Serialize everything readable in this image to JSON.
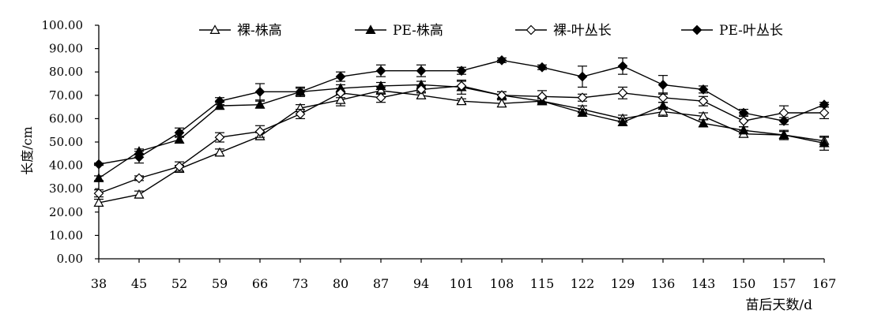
{
  "chart_data": {
    "type": "line",
    "title": "",
    "xlabel": "苗后天数/d",
    "ylabel": "长度/cm",
    "ylim": [
      0,
      100
    ],
    "yticks": [
      "0.00",
      "10.00",
      "20.00",
      "30.00",
      "40.00",
      "50.00",
      "60.00",
      "70.00",
      "80.00",
      "90.00",
      "100.00"
    ],
    "categories": [
      "38",
      "45",
      "52",
      "59",
      "66",
      "73",
      "80",
      "87",
      "94",
      "101",
      "108",
      "115",
      "122",
      "129",
      "136",
      "143",
      "150",
      "157",
      "167"
    ],
    "legend_position": "top",
    "series": [
      {
        "name": "裸-株高",
        "marker": "triangle-open",
        "values": [
          24,
          27.5,
          38.5,
          45.5,
          52.5,
          64.5,
          68,
          72,
          70,
          67.5,
          66.5,
          67.5,
          64,
          60,
          63,
          61,
          53.5,
          53,
          50.5
        ],
        "errors": [
          1.5,
          1.5,
          1.5,
          1.5,
          1.5,
          1.5,
          2.5,
          1.5,
          1.5,
          1.0,
          1.5,
          1.5,
          1.5,
          1.5,
          2.0,
          1.5,
          1.5,
          1.5,
          1.5
        ]
      },
      {
        "name": "PE-株高",
        "marker": "triangle-filled",
        "values": [
          34.5,
          46,
          51,
          65.5,
          66,
          71.5,
          73,
          74,
          74.5,
          73.5,
          70,
          67.5,
          62.5,
          58.5,
          65.5,
          58,
          55,
          53,
          49.5
        ],
        "errors": [
          1.0,
          1.0,
          1.5,
          1.5,
          1.5,
          1.5,
          1.5,
          1.5,
          1.5,
          3.0,
          1.5,
          1.0,
          1.5,
          1.5,
          1.5,
          1.5,
          1.5,
          2.0,
          3.0
        ]
      },
      {
        "name": "裸-叶丛长",
        "marker": "diamond-open",
        "values": [
          28,
          34.5,
          39.5,
          52,
          54.5,
          62,
          71,
          69,
          72.5,
          74,
          70,
          69.5,
          69,
          71,
          69,
          67.5,
          59,
          62.5,
          62.5
        ],
        "errors": [
          1.5,
          1.0,
          2.0,
          2.0,
          2.5,
          2.0,
          2.0,
          2.0,
          1.5,
          2.0,
          1.5,
          2.5,
          1.5,
          2.5,
          2.0,
          2.0,
          2.5,
          3.0,
          2.5
        ]
      },
      {
        "name": "PE-叶丛长",
        "marker": "diamond-filled",
        "values": [
          40.5,
          43.5,
          54,
          67.5,
          71.5,
          71.5,
          78,
          80.5,
          80.5,
          80.5,
          85,
          82,
          78,
          82.5,
          74.5,
          72.5,
          62.5,
          59,
          66
        ],
        "errors": [
          0.5,
          2.5,
          2.0,
          1.5,
          3.5,
          2.0,
          2.0,
          2.5,
          2.5,
          1.5,
          1.0,
          1.0,
          4.5,
          3.5,
          4.0,
          1.5,
          1.5,
          1.5,
          1.0
        ]
      }
    ]
  }
}
